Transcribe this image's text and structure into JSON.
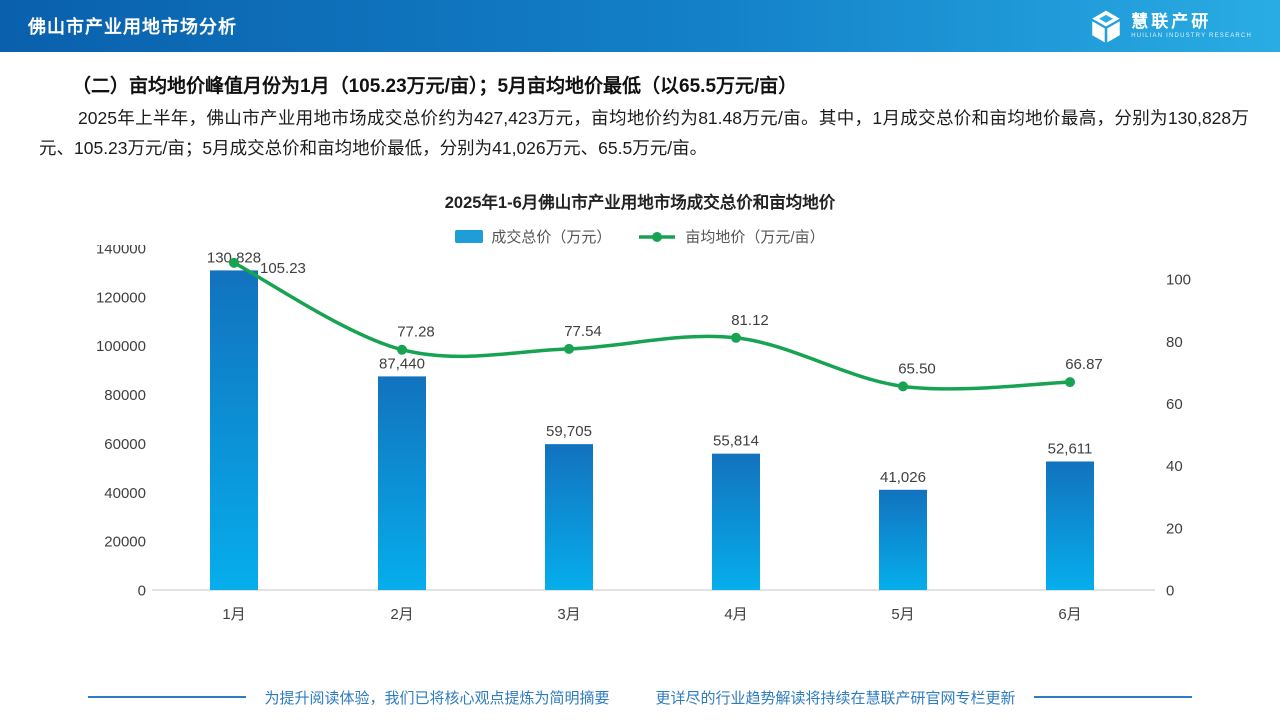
{
  "header": {
    "title": "佛山市产业用地市场分析",
    "logo_name": "慧联产研",
    "logo_tagline": "HUILIAN INDUSTRY RESEARCH"
  },
  "summary": {
    "heading": "（二）亩均地价峰值月份为1月（105.23万元/亩）；5月亩均地价最低（以65.5万元/亩）",
    "paragraph": "2025年上半年，佛山市产业用地市场成交总价约为427,423万元，亩均地价约为81.48万元/亩。其中，1月成交总价和亩均地价最高，分别为130,828万元、105.23万元/亩；5月成交总价和亩均地价最低，分别为41,026万元、65.5万元/亩。"
  },
  "chart_data": {
    "type": "bar+line combo",
    "title": "2025年1-6月佛山市产业用地市场成交总价和亩均地价",
    "categories": [
      "1月",
      "2月",
      "3月",
      "4月",
      "5月",
      "6月"
    ],
    "series": [
      {
        "name": "成交总价（万元）",
        "type": "bar",
        "axis": "left",
        "values": [
          130828,
          87440,
          59705,
          55814,
          41026,
          52611
        ],
        "labels": [
          "130,828",
          "87,440",
          "59,705",
          "55,814",
          "41,026",
          "52,611"
        ],
        "color_top": "#1272be",
        "color_bottom": "#06aeec"
      },
      {
        "name": "亩均地价（万元/亩）",
        "type": "line",
        "axis": "right",
        "smooth": true,
        "values": [
          105.23,
          77.28,
          77.54,
          81.12,
          65.5,
          66.87
        ],
        "labels": [
          "105.23",
          "77.28",
          "77.54",
          "81.12",
          "65.50",
          "66.87"
        ],
        "color": "#17a351"
      }
    ],
    "left_axis": {
      "min": 0,
      "max": 140000,
      "step": 20000,
      "ticks": [
        "0",
        "20000",
        "40000",
        "60000",
        "80000",
        "100000",
        "120000",
        "140000"
      ]
    },
    "right_axis": {
      "min": 0,
      "max": 110,
      "step": 20,
      "ticks": [
        "0",
        "20",
        "40",
        "60",
        "80",
        "100"
      ]
    },
    "legend_position": "top",
    "grid": false
  },
  "footer": {
    "text1": "为提升阅读体验，我们已将核心观点提炼为简明摘要",
    "text2": "更详尽的行业趋势解读将持续在慧联产研官网专栏更新"
  },
  "colors": {
    "header_dark": "#0a60ac",
    "header_light": "#29ace3",
    "bar_top": "#1272be",
    "bar_bottom": "#06aeec",
    "line_green": "#17a351",
    "legend_swatch": "#1e9dd8",
    "axis_text": "#404040",
    "footer_blue": "#2e7cc1"
  }
}
